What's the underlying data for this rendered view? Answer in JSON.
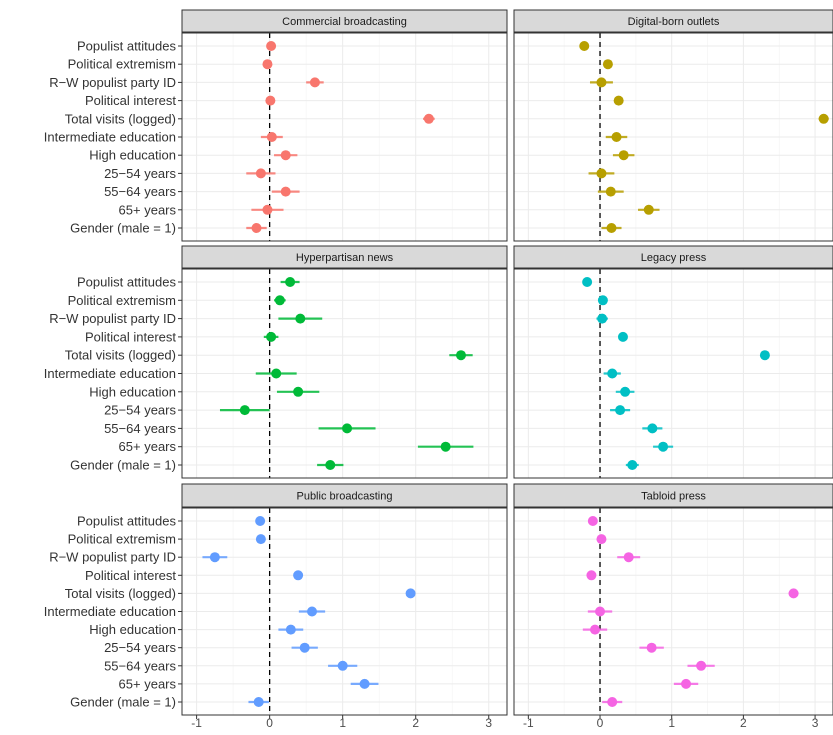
{
  "chart_data": {
    "type": "scatter",
    "subtype": "coefficient-plot-facets",
    "grid": true,
    "xlim": [
      -1.2,
      3.25
    ],
    "x_ticks": [
      -1,
      0,
      1,
      2,
      3
    ],
    "x_tick_labels": [
      "-1",
      "0",
      "1",
      "2",
      "3"
    ],
    "reference_line_x": 0,
    "terms": [
      "Populist attitudes",
      "Political extremism",
      "R−W populist party ID",
      "Political interest",
      "Total visits (logged)",
      "Intermediate education",
      "High education",
      "25−54 years",
      "55−64 years",
      "65+ years",
      "Gender (male = 1)"
    ],
    "panels": [
      {
        "title": "Commercial broadcasting",
        "color": "#F8766D",
        "estimates": [
          0.02,
          -0.03,
          0.62,
          0.01,
          2.18,
          0.03,
          0.22,
          -0.12,
          0.22,
          -0.03,
          -0.18
        ],
        "lower": [
          -0.03,
          -0.08,
          0.5,
          -0.04,
          2.1,
          -0.12,
          0.06,
          -0.32,
          0.03,
          -0.25,
          -0.32
        ],
        "upper": [
          0.07,
          0.02,
          0.74,
          0.06,
          2.26,
          0.18,
          0.38,
          0.08,
          0.41,
          0.19,
          -0.04
        ]
      },
      {
        "title": "Digital-born outlets",
        "color": "#B79F00",
        "estimates": [
          -0.22,
          0.11,
          0.02,
          0.26,
          3.12,
          0.23,
          0.33,
          0.02,
          0.15,
          0.68,
          0.16
        ],
        "lower": [
          -0.27,
          0.06,
          -0.14,
          0.21,
          3.05,
          0.08,
          0.18,
          -0.16,
          -0.03,
          0.53,
          0.02
        ],
        "upper": [
          -0.17,
          0.16,
          0.18,
          0.31,
          3.19,
          0.38,
          0.48,
          0.2,
          0.33,
          0.83,
          0.3
        ]
      },
      {
        "title": "Hyperpartisan news",
        "color": "#00BA38",
        "estimates": [
          0.28,
          0.14,
          0.42,
          0.02,
          2.62,
          0.09,
          0.39,
          -0.34,
          1.06,
          2.41,
          0.83
        ],
        "lower": [
          0.15,
          0.06,
          0.12,
          -0.08,
          2.46,
          -0.19,
          0.1,
          -0.68,
          0.67,
          2.03,
          0.65
        ],
        "upper": [
          0.41,
          0.22,
          0.72,
          0.12,
          2.78,
          0.37,
          0.68,
          0.0,
          1.45,
          2.79,
          1.01
        ]
      },
      {
        "title": "Legacy press",
        "color": "#00BFC4",
        "estimates": [
          -0.18,
          0.04,
          0.03,
          0.32,
          2.3,
          0.17,
          0.35,
          0.28,
          0.73,
          0.88,
          0.45
        ],
        "lower": [
          -0.22,
          -0.01,
          -0.05,
          0.27,
          2.25,
          0.05,
          0.22,
          0.14,
          0.59,
          0.74,
          0.36
        ],
        "upper": [
          -0.14,
          0.09,
          0.11,
          0.37,
          2.35,
          0.29,
          0.48,
          0.42,
          0.87,
          1.02,
          0.54
        ]
      },
      {
        "title": "Public broadcasting",
        "color": "#619CFF",
        "estimates": [
          -0.13,
          -0.12,
          -0.75,
          0.39,
          1.93,
          0.58,
          0.29,
          0.48,
          1.0,
          1.3,
          -0.15
        ],
        "lower": [
          -0.18,
          -0.17,
          -0.92,
          0.34,
          1.87,
          0.4,
          0.12,
          0.3,
          0.8,
          1.11,
          -0.29
        ],
        "upper": [
          -0.08,
          -0.07,
          -0.58,
          0.44,
          1.99,
          0.76,
          0.46,
          0.66,
          1.2,
          1.49,
          -0.01
        ]
      },
      {
        "title": "Tabloid press",
        "color": "#F564E3",
        "estimates": [
          -0.1,
          0.02,
          0.4,
          -0.12,
          2.7,
          0.0,
          -0.07,
          0.72,
          1.41,
          1.2,
          0.17
        ],
        "lower": [
          -0.15,
          -0.03,
          0.24,
          -0.17,
          2.63,
          -0.17,
          -0.24,
          0.55,
          1.22,
          1.03,
          0.03
        ],
        "upper": [
          -0.05,
          0.07,
          0.56,
          -0.07,
          2.77,
          0.17,
          0.1,
          0.89,
          1.6,
          1.37,
          0.31
        ]
      }
    ]
  }
}
